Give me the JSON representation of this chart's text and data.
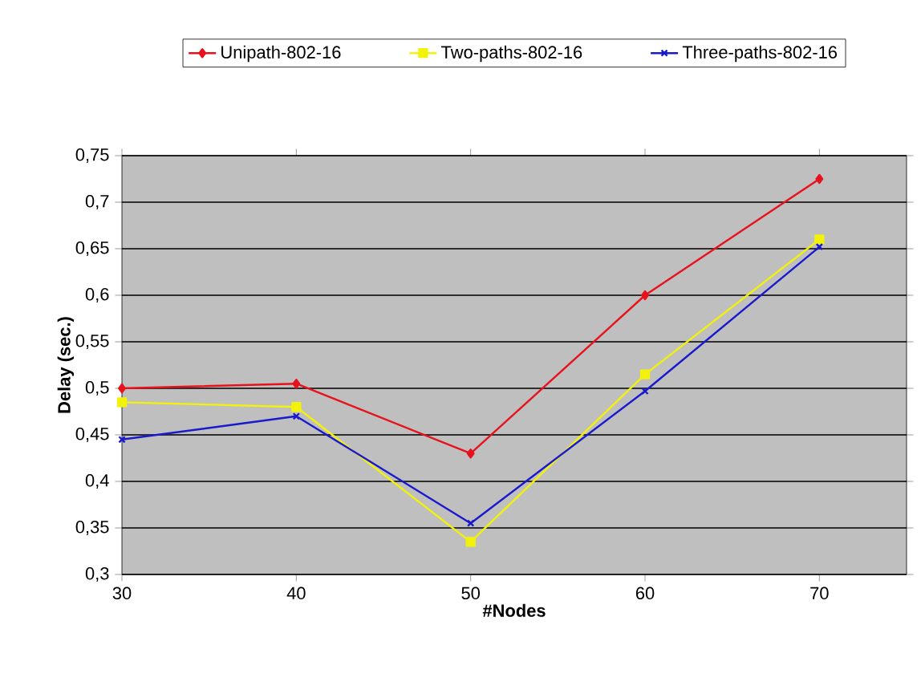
{
  "chart_data": {
    "type": "line",
    "xlabel": "#Nodes",
    "ylabel": "Delay (sec.)",
    "x": [
      30,
      40,
      50,
      60,
      70
    ],
    "series": [
      {
        "name": "Unipath-802-16",
        "color": "#e8121c",
        "marker": "diamond",
        "values": [
          0.5,
          0.505,
          0.43,
          0.6,
          0.725
        ]
      },
      {
        "name": "Two-paths-802-16",
        "color": "#f2f20a",
        "marker": "square",
        "values": [
          0.485,
          0.48,
          0.335,
          0.515,
          0.66
        ]
      },
      {
        "name": "Three-paths-802-16",
        "color": "#1a1acc",
        "marker": "cross",
        "values": [
          0.445,
          0.47,
          0.355,
          0.497,
          0.652
        ]
      }
    ],
    "xlim": [
      30,
      75
    ],
    "xticks": [
      30,
      40,
      50,
      60,
      70
    ],
    "ylim": [
      0.3,
      0.75
    ],
    "yticks": [
      {
        "value": 0.3,
        "label": "0,3"
      },
      {
        "value": 0.35,
        "label": "0,35"
      },
      {
        "value": 0.4,
        "label": "0,4"
      },
      {
        "value": 0.45,
        "label": "0,45"
      },
      {
        "value": 0.5,
        "label": "0,5"
      },
      {
        "value": 0.55,
        "label": "0,55"
      },
      {
        "value": 0.6,
        "label": "0,6"
      },
      {
        "value": 0.65,
        "label": "0,65"
      },
      {
        "value": 0.7,
        "label": "0,7"
      },
      {
        "value": 0.75,
        "label": "0,75"
      }
    ],
    "grid": "y",
    "legend": "top",
    "line_style": "solid"
  }
}
